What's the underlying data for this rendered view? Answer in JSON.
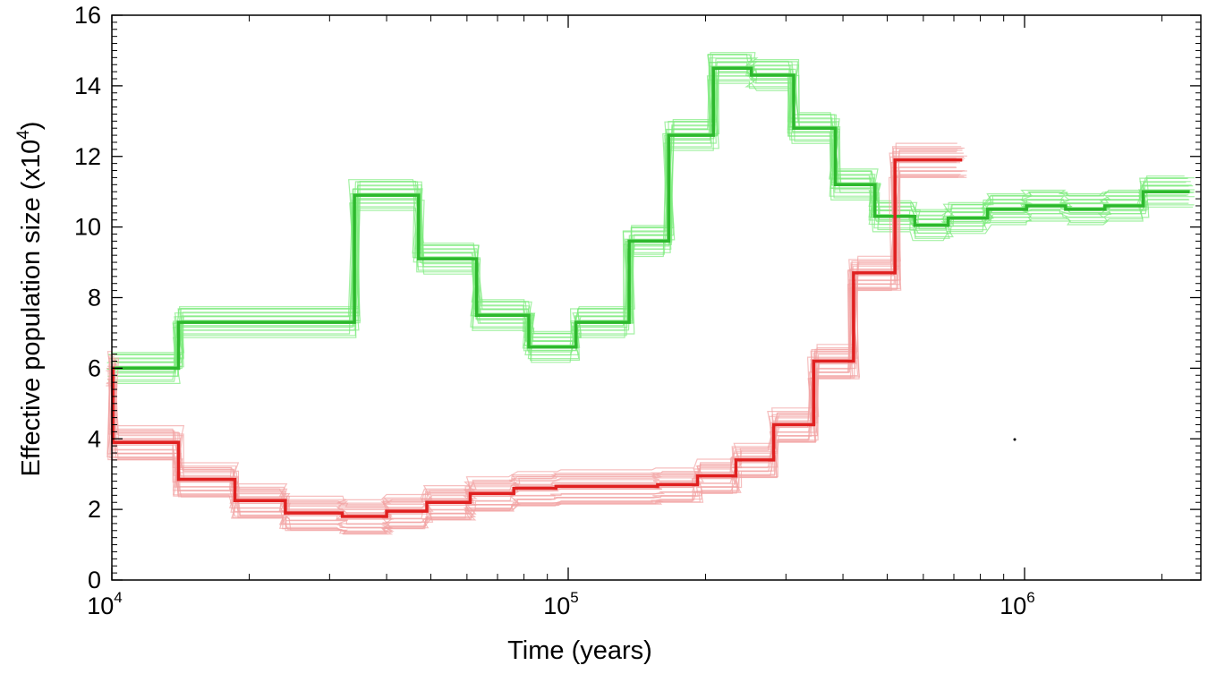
{
  "chart_data": {
    "type": "line",
    "xscale": "log",
    "xlim": [
      10000,
      2300000
    ],
    "ylim": [
      0,
      16
    ],
    "xlabel": "Time (years)",
    "ylabel": {
      "prefix": "Effective population size (x10",
      "exp": "4",
      "suffix": ")"
    },
    "yticks": [
      "0",
      "2",
      "4",
      "6",
      "8",
      "10",
      "12",
      "14",
      "16"
    ],
    "xticks": [
      {
        "value": 10000,
        "base": "10",
        "exp": "4"
      },
      {
        "value": 100000,
        "base": "10",
        "exp": "5"
      },
      {
        "value": 1000000,
        "base": "10",
        "exp": "6"
      }
    ],
    "grid": false,
    "series": [
      {
        "color": "#2db82d",
        "band_color": "#7deb7d",
        "band_spread": 0.45,
        "points": [
          [
            10000,
            6.0
          ],
          [
            14000,
            6.0
          ],
          [
            14000,
            7.3
          ],
          [
            34000,
            7.3
          ],
          [
            34000,
            10.9
          ],
          [
            47000,
            10.9
          ],
          [
            47000,
            9.1
          ],
          [
            63000,
            9.1
          ],
          [
            63000,
            7.5
          ],
          [
            82000,
            7.5
          ],
          [
            82000,
            6.6
          ],
          [
            104000,
            6.6
          ],
          [
            104000,
            7.3
          ],
          [
            136000,
            7.3
          ],
          [
            136000,
            9.6
          ],
          [
            166000,
            9.6
          ],
          [
            166000,
            12.6
          ],
          [
            208000,
            12.6
          ],
          [
            208000,
            14.5
          ],
          [
            252000,
            14.5
          ],
          [
            252000,
            14.3
          ],
          [
            312000,
            14.3
          ],
          [
            312000,
            12.8
          ],
          [
            385000,
            12.8
          ],
          [
            385000,
            11.2
          ],
          [
            470000,
            11.2
          ],
          [
            470000,
            10.3
          ],
          [
            575000,
            10.3
          ],
          [
            575000,
            10.05
          ],
          [
            680000,
            10.05
          ],
          [
            680000,
            10.25
          ],
          [
            830000,
            10.25
          ],
          [
            830000,
            10.5
          ],
          [
            1010000,
            10.5
          ],
          [
            1010000,
            10.6
          ],
          [
            1230000,
            10.6
          ],
          [
            1230000,
            10.5
          ],
          [
            1500000,
            10.5
          ],
          [
            1500000,
            10.6
          ],
          [
            1820000,
            10.6
          ],
          [
            1820000,
            11.0
          ],
          [
            2300000,
            11.0
          ]
        ]
      },
      {
        "color": "#e02020",
        "band_color": "#f2a4a4",
        "band_spread": 0.5,
        "points": [
          [
            10000,
            6.0
          ],
          [
            10050,
            6.0
          ],
          [
            10050,
            3.9
          ],
          [
            14000,
            3.9
          ],
          [
            14000,
            2.85
          ],
          [
            18600,
            2.85
          ],
          [
            18600,
            2.25
          ],
          [
            24000,
            2.25
          ],
          [
            24000,
            1.9
          ],
          [
            32000,
            1.9
          ],
          [
            32000,
            1.8
          ],
          [
            40000,
            1.8
          ],
          [
            40000,
            1.95
          ],
          [
            49000,
            1.95
          ],
          [
            49000,
            2.2
          ],
          [
            61000,
            2.2
          ],
          [
            61000,
            2.45
          ],
          [
            76000,
            2.45
          ],
          [
            76000,
            2.6
          ],
          [
            94000,
            2.6
          ],
          [
            94000,
            2.65
          ],
          [
            157000,
            2.65
          ],
          [
            157000,
            2.7
          ],
          [
            192000,
            2.7
          ],
          [
            192000,
            2.95
          ],
          [
            233000,
            2.95
          ],
          [
            233000,
            3.4
          ],
          [
            282000,
            3.4
          ],
          [
            282000,
            4.4
          ],
          [
            345000,
            4.4
          ],
          [
            345000,
            6.2
          ],
          [
            422000,
            6.2
          ],
          [
            422000,
            8.7
          ],
          [
            520000,
            8.7
          ],
          [
            520000,
            11.9
          ],
          [
            730000,
            11.9
          ]
        ]
      }
    ]
  }
}
